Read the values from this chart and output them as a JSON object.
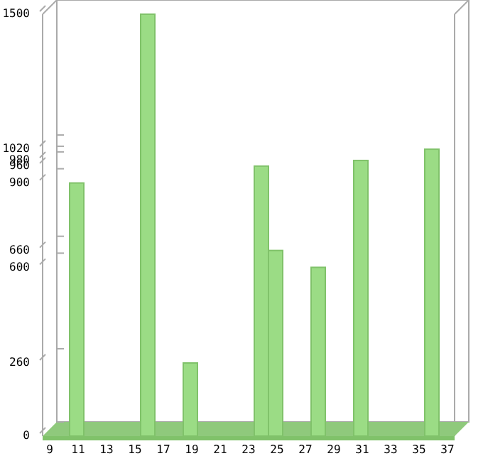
{
  "chart_data": {
    "type": "bar",
    "x": [
      11,
      16,
      19,
      24,
      25,
      28,
      31,
      36
    ],
    "values": [
      900,
      1500,
      260,
      960,
      660,
      600,
      980,
      1020
    ],
    "color": "#9bdc85",
    "xlim": [
      8.5,
      37.5
    ],
    "xticks": [
      9,
      11,
      13,
      15,
      17,
      19,
      21,
      23,
      25,
      27,
      29,
      31,
      33,
      35,
      37
    ],
    "ylim": [
      0,
      1500
    ],
    "yticks": [
      0,
      260,
      600,
      660,
      900,
      960,
      980,
      1020,
      1500
    ],
    "grid": false
  }
}
